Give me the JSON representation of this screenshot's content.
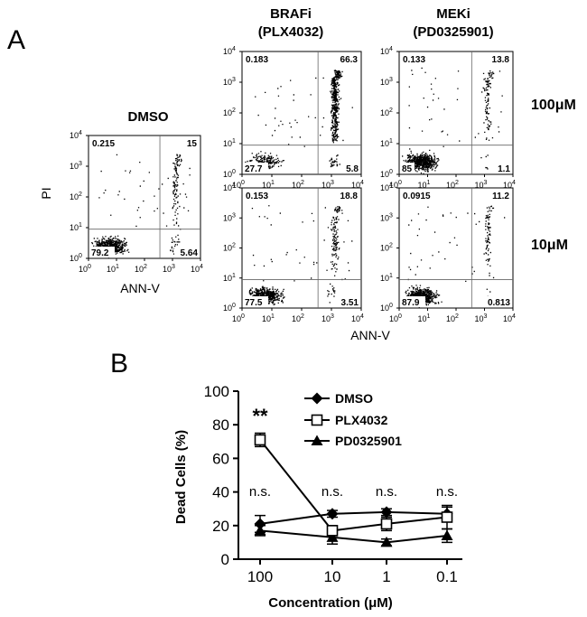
{
  "panel_a": {
    "label": "A",
    "col_titles": {
      "dmso": "DMSO",
      "braf": [
        "BRAFi",
        "(PLX4032)"
      ],
      "mek": [
        "MEKi",
        "(PD0325901)"
      ]
    },
    "row_labels": {
      "high": "100μM",
      "low": "10μM"
    },
    "y_axis_label": "PI",
    "x_axis_label": "ANN-V",
    "log_tick_base": "10",
    "log_tick_exps": [
      "0",
      "1",
      "2",
      "3",
      "4"
    ]
  },
  "panel_b": {
    "label": "B",
    "significance": [
      "**",
      "n.s.",
      "n.s.",
      "n.s.",
      "n.s."
    ]
  },
  "chart_data": [
    {
      "type": "scatter",
      "kind": "flow-cytometry quadrant plots (log scale 10^0 to 10^4)",
      "xlabel": "ANN-V",
      "ylabel": "PI",
      "xlim": [
        1,
        10000
      ],
      "ylim": [
        1,
        10000
      ],
      "plots": [
        {
          "id": "dmso",
          "condition": "DMSO",
          "quadrants": {
            "upper_left": "0.215",
            "upper_right": "15",
            "lower_left": "79.2",
            "lower_right": "5.64"
          }
        },
        {
          "id": "braf_100",
          "condition": "BRAFi (PLX4032) 100μM",
          "quadrants": {
            "upper_left": "0.183",
            "upper_right": "66.3",
            "lower_left": "27.7",
            "lower_right": "5.8"
          }
        },
        {
          "id": "mek_100",
          "condition": "MEKi (PD0325901) 100μM",
          "quadrants": {
            "upper_left": "0.133",
            "upper_right": "13.8",
            "lower_left": "85",
            "lower_right": "1.1"
          }
        },
        {
          "id": "braf_10",
          "condition": "BRAFi (PLX4032) 10μM",
          "quadrants": {
            "upper_left": "0.153",
            "upper_right": "18.8",
            "lower_left": "77.5",
            "lower_right": "3.51"
          }
        },
        {
          "id": "mek_10",
          "condition": "MEKi (PD0325901) 10μM",
          "quadrants": {
            "upper_left": "0.0915",
            "upper_right": "11.2",
            "lower_left": "87.9",
            "lower_right": "0.813"
          }
        }
      ]
    },
    {
      "type": "line",
      "xlabel": "Concentration (μM)",
      "ylabel": "Dead Cells (%)",
      "categories": [
        "100",
        "10",
        "1",
        "0.1"
      ],
      "ylim": [
        0,
        100
      ],
      "yticks": [
        "0",
        "20",
        "40",
        "60",
        "80",
        "100"
      ],
      "series": [
        {
          "name": "DMSO",
          "marker": "diamond-filled",
          "values": [
            21,
            27,
            28,
            27
          ],
          "errors": [
            5,
            2,
            2,
            4
          ]
        },
        {
          "name": "PLX4032",
          "marker": "square-open",
          "values": [
            71,
            17,
            21,
            25
          ],
          "errors": [
            4,
            3,
            4,
            7
          ]
        },
        {
          "name": "PD0325901",
          "marker": "triangle-filled",
          "values": [
            17,
            13,
            10,
            14
          ],
          "errors": [
            3,
            4,
            2,
            4
          ]
        }
      ]
    }
  ]
}
